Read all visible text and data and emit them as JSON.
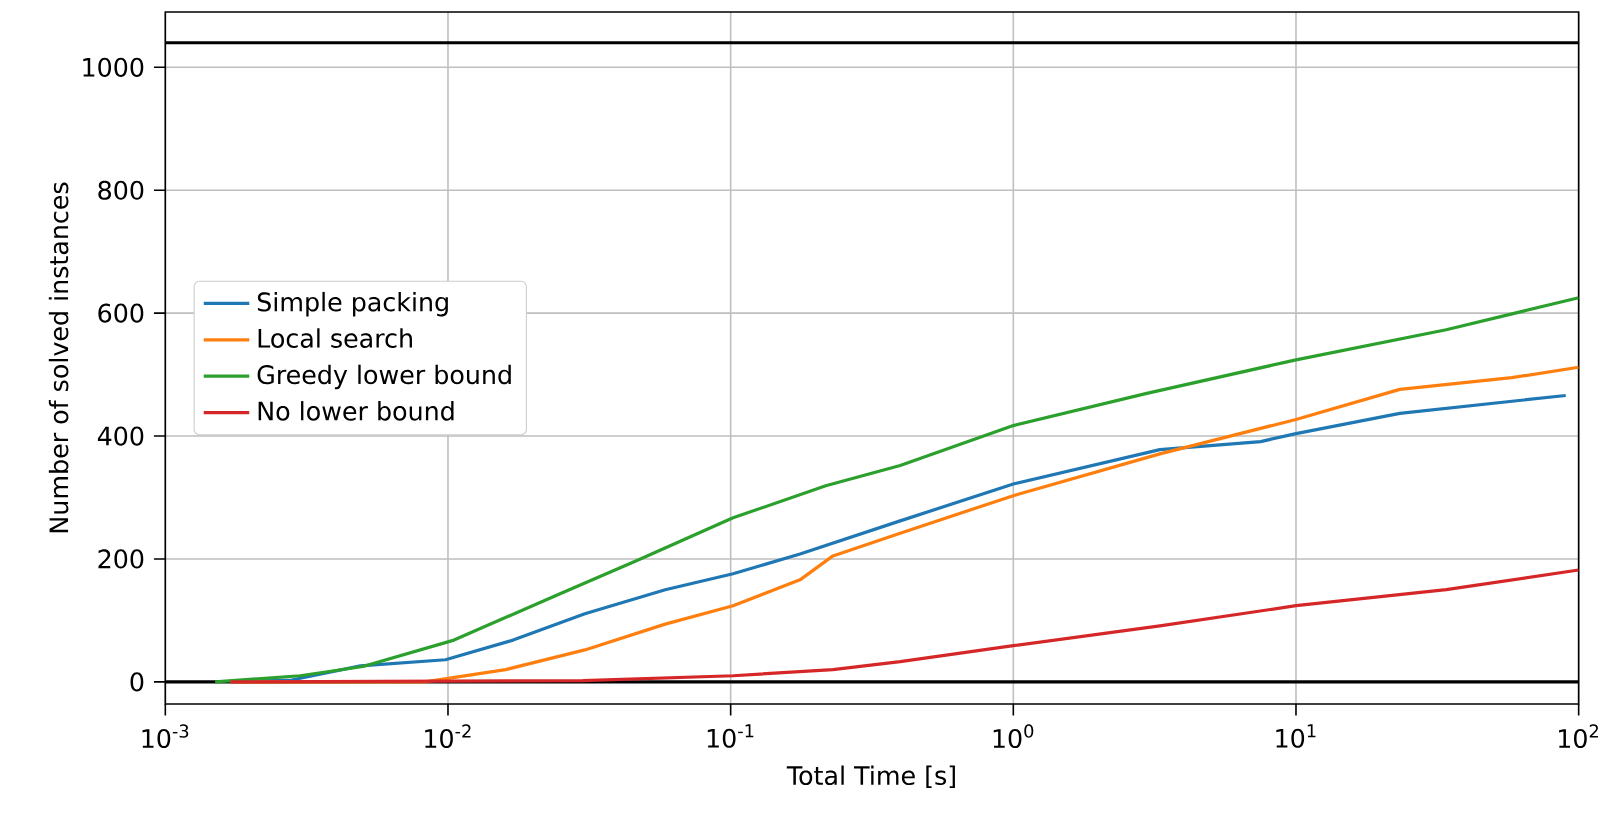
{
  "chart_data": {
    "type": "line",
    "xlabel": "Total Time [s]",
    "ylabel": "Number of solved instances",
    "log": "x",
    "grid": true,
    "legend": "left",
    "xlim": [
      0.001,
      100
    ],
    "ylim": [
      -36,
      1090
    ],
    "xticks": [
      {
        "value": 0.001,
        "label": "10$^{-3}$"
      },
      {
        "value": 0.01,
        "label": "10$^{-2}$"
      },
      {
        "value": 0.1,
        "label": "10$^{-1}$"
      },
      {
        "value": 1,
        "label": "10$^{0}$"
      },
      {
        "value": 10,
        "label": "10$^{1}$"
      },
      {
        "value": 100,
        "label": "10$^{2}$"
      }
    ],
    "yticks": [
      0,
      200,
      400,
      600,
      800,
      1000
    ],
    "ref_lines": [
      {
        "axis": "y",
        "value": 0,
        "color": "#000000"
      },
      {
        "axis": "y",
        "value": 1040,
        "color": "#000000"
      }
    ],
    "series": [
      {
        "name": "Simple packing",
        "color": "#1f77b4",
        "x": [
          0.0017,
          0.0028,
          0.0049,
          0.0098,
          0.017,
          0.0305,
          0.0587,
          0.102,
          0.176,
          0.398,
          1.0,
          3.3,
          7.5,
          10,
          23.3,
          90
        ],
        "values": [
          0,
          3,
          26,
          36,
          68,
          111,
          150,
          176,
          208,
          262,
          322,
          378,
          391,
          404,
          437,
          466
        ]
      },
      {
        "name": "Local search",
        "color": "#ff7f0e",
        "x": [
          0.0017,
          0.0083,
          0.016,
          0.0305,
          0.0587,
          0.102,
          0.176,
          0.23,
          0.398,
          1.0,
          3.3,
          10,
          23.3,
          58,
          100
        ],
        "values": [
          0,
          0,
          20,
          52,
          94,
          124,
          166,
          205,
          242,
          303,
          371,
          427,
          476,
          495,
          512
        ]
      },
      {
        "name": "Greedy lower bound",
        "color": "#2ca02c",
        "x": [
          0.0015,
          0.003,
          0.005,
          0.0105,
          0.0248,
          0.0475,
          0.102,
          0.217,
          0.398,
          1.0,
          2.94,
          10,
          34,
          100
        ],
        "values": [
          0,
          10,
          25,
          68,
          143,
          199,
          267,
          319,
          352,
          417,
          469,
          524,
          573,
          625
        ]
      },
      {
        "name": "No lower bound",
        "color": "#d62728",
        "x": [
          0.0017,
          0.03,
          0.102,
          0.23,
          0.398,
          1.0,
          3.3,
          10,
          34,
          100
        ],
        "values": [
          0,
          2,
          10,
          20,
          33,
          59,
          91,
          124,
          150,
          182
        ]
      }
    ]
  }
}
